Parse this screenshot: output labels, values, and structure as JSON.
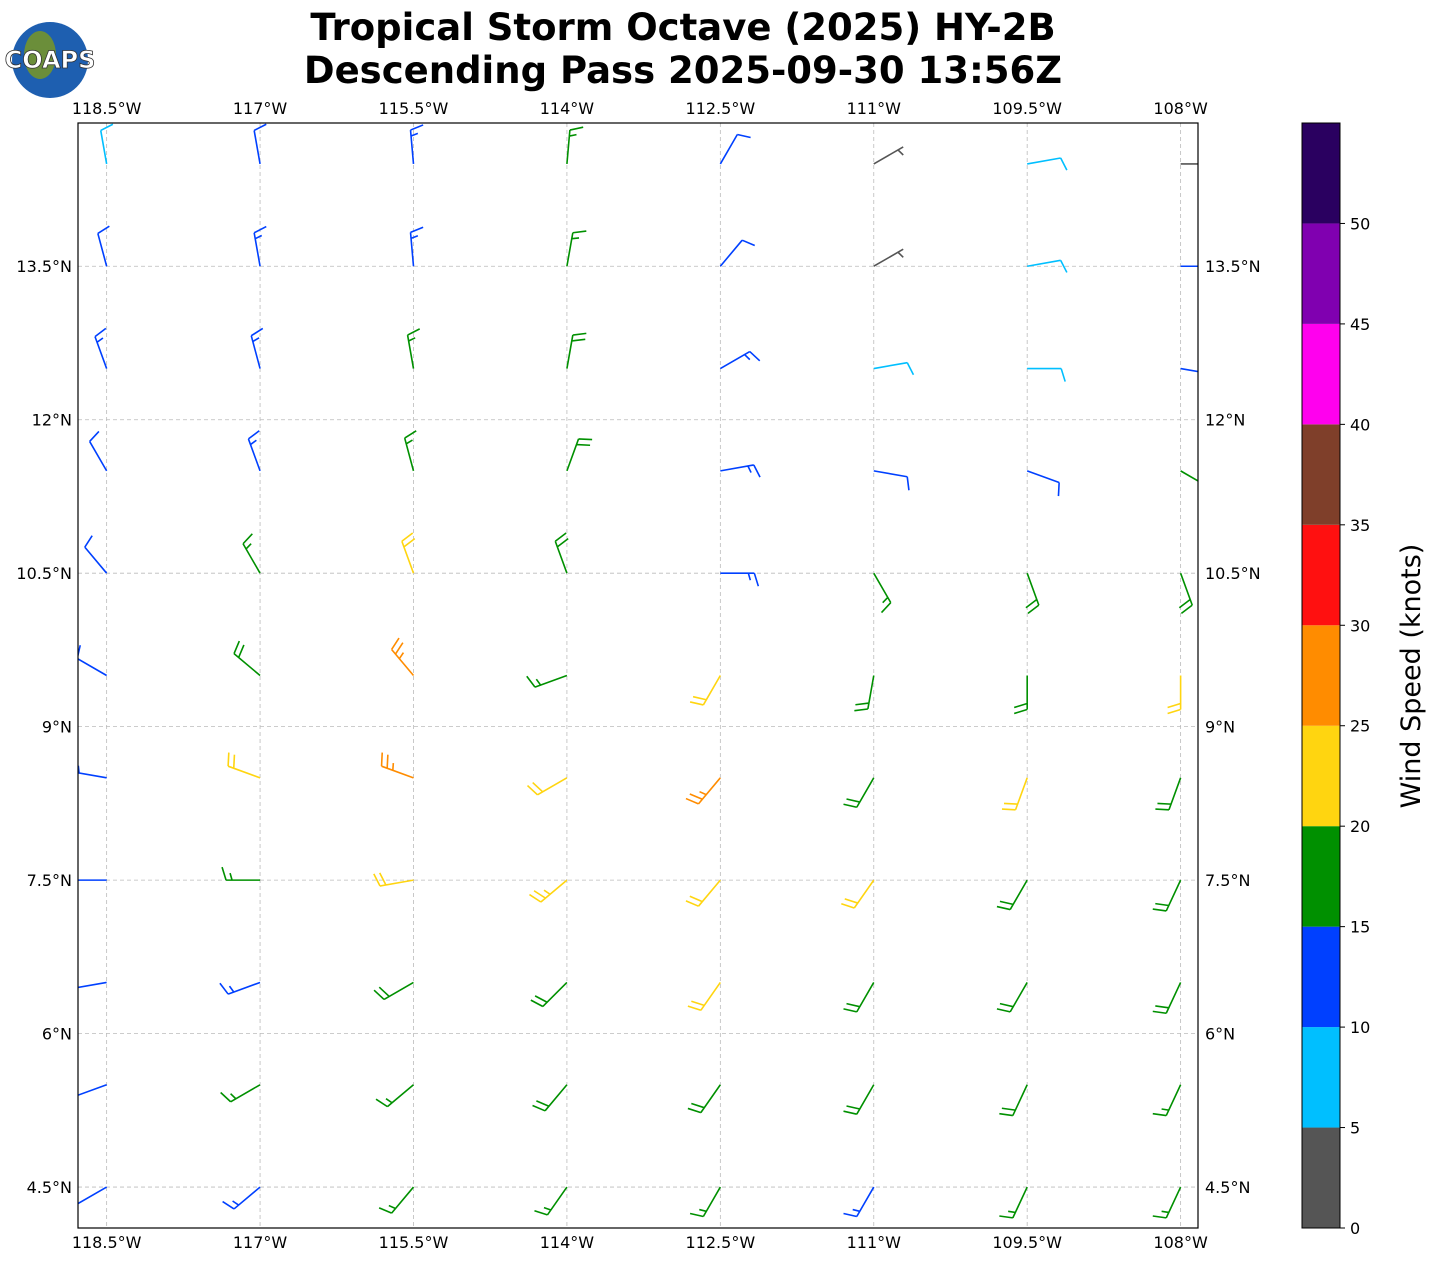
{
  "chart_data": {
    "type": "barbs",
    "title": [
      "Tropical Storm Octave (2025) HY-2B",
      "Descending Pass 2025-09-30 13:56Z"
    ],
    "logo": "COAPS",
    "xlim": [
      -118.78,
      -107.83
    ],
    "ylim": [
      4.1,
      14.9
    ],
    "xticks": [
      {
        "value": -118.5,
        "label": "118.5°W"
      },
      {
        "value": -117,
        "label": "117°W"
      },
      {
        "value": -115.5,
        "label": "115.5°W"
      },
      {
        "value": -114,
        "label": "114°W"
      },
      {
        "value": -112.5,
        "label": "112.5°W"
      },
      {
        "value": -111,
        "label": "111°W"
      },
      {
        "value": -109.5,
        "label": "109.5°W"
      },
      {
        "value": -108,
        "label": "108°W"
      }
    ],
    "yticks": [
      {
        "value": 4.5,
        "label": "4.5°N"
      },
      {
        "value": 6,
        "label": "6°N"
      },
      {
        "value": 7.5,
        "label": "7.5°N"
      },
      {
        "value": 9,
        "label": "9°N"
      },
      {
        "value": 10.5,
        "label": "10.5°N"
      },
      {
        "value": 12,
        "label": "12°N"
      },
      {
        "value": 13.5,
        "label": "13.5°N"
      }
    ],
    "grid": true,
    "lons": [
      -118.5,
      -117,
      -115.5,
      -114,
      -112.5,
      -111,
      -109.5,
      -108
    ],
    "lats": [
      14.5,
      13.5,
      12.5,
      11.5,
      10.5,
      9.5,
      8.5,
      7.5,
      6.5,
      5.5,
      4.5
    ],
    "speed": [
      [
        8,
        12,
        13,
        17,
        12,
        3,
        8,
        4
      ],
      [
        12,
        13,
        14,
        17,
        12,
        4,
        8,
        12
      ],
      [
        13,
        13,
        16,
        18,
        13,
        8,
        9,
        12
      ],
      [
        12,
        14,
        17,
        19,
        14,
        10,
        10,
        16
      ],
      [
        12,
        16,
        22,
        18,
        14,
        17,
        18,
        18
      ],
      [
        11,
        18,
        26,
        15,
        22,
        18,
        19,
        21
      ],
      [
        13,
        21,
        27,
        22,
        26,
        19,
        20,
        19
      ],
      [
        12,
        16,
        22,
        24,
        22,
        21,
        19,
        18
      ],
      [
        12,
        14,
        18,
        19,
        21,
        19,
        19,
        18
      ],
      [
        12,
        16,
        17,
        18,
        18,
        19,
        18,
        17
      ],
      [
        12,
        14,
        17,
        17,
        17,
        14,
        17,
        17
      ]
    ],
    "direction": [
      [
        350,
        350,
        355,
        5,
        30,
        60,
        80,
        90
      ],
      [
        345,
        350,
        355,
        10,
        40,
        60,
        80,
        90
      ],
      [
        340,
        345,
        350,
        10,
        60,
        80,
        90,
        100
      ],
      [
        330,
        340,
        345,
        20,
        80,
        100,
        110,
        120
      ],
      [
        320,
        330,
        340,
        340,
        90,
        150,
        160,
        160
      ],
      [
        300,
        310,
        320,
        250,
        210,
        190,
        180,
        180
      ],
      [
        280,
        290,
        290,
        240,
        220,
        210,
        200,
        200
      ],
      [
        270,
        270,
        260,
        230,
        220,
        215,
        210,
        205
      ],
      [
        260,
        250,
        240,
        225,
        215,
        210,
        210,
        205
      ],
      [
        250,
        240,
        230,
        220,
        215,
        210,
        205,
        205
      ],
      [
        240,
        230,
        220,
        215,
        210,
        210,
        205,
        205
      ]
    ],
    "colorbar": {
      "label": "Wind Speed (knots)",
      "bounds": [
        0,
        5,
        10,
        15,
        20,
        25,
        30,
        35,
        40,
        45,
        50,
        55
      ],
      "ticks": [
        0,
        5,
        10,
        15,
        20,
        25,
        30,
        35,
        40,
        45,
        50
      ],
      "colors": [
        "#555555",
        "#00bfff",
        "#0040ff",
        "#009000",
        "#ffd510",
        "#ff8c00",
        "#ff1010",
        "#7f3f2a",
        "#ff00ee",
        "#8000b0",
        "#2a0060"
      ]
    }
  }
}
